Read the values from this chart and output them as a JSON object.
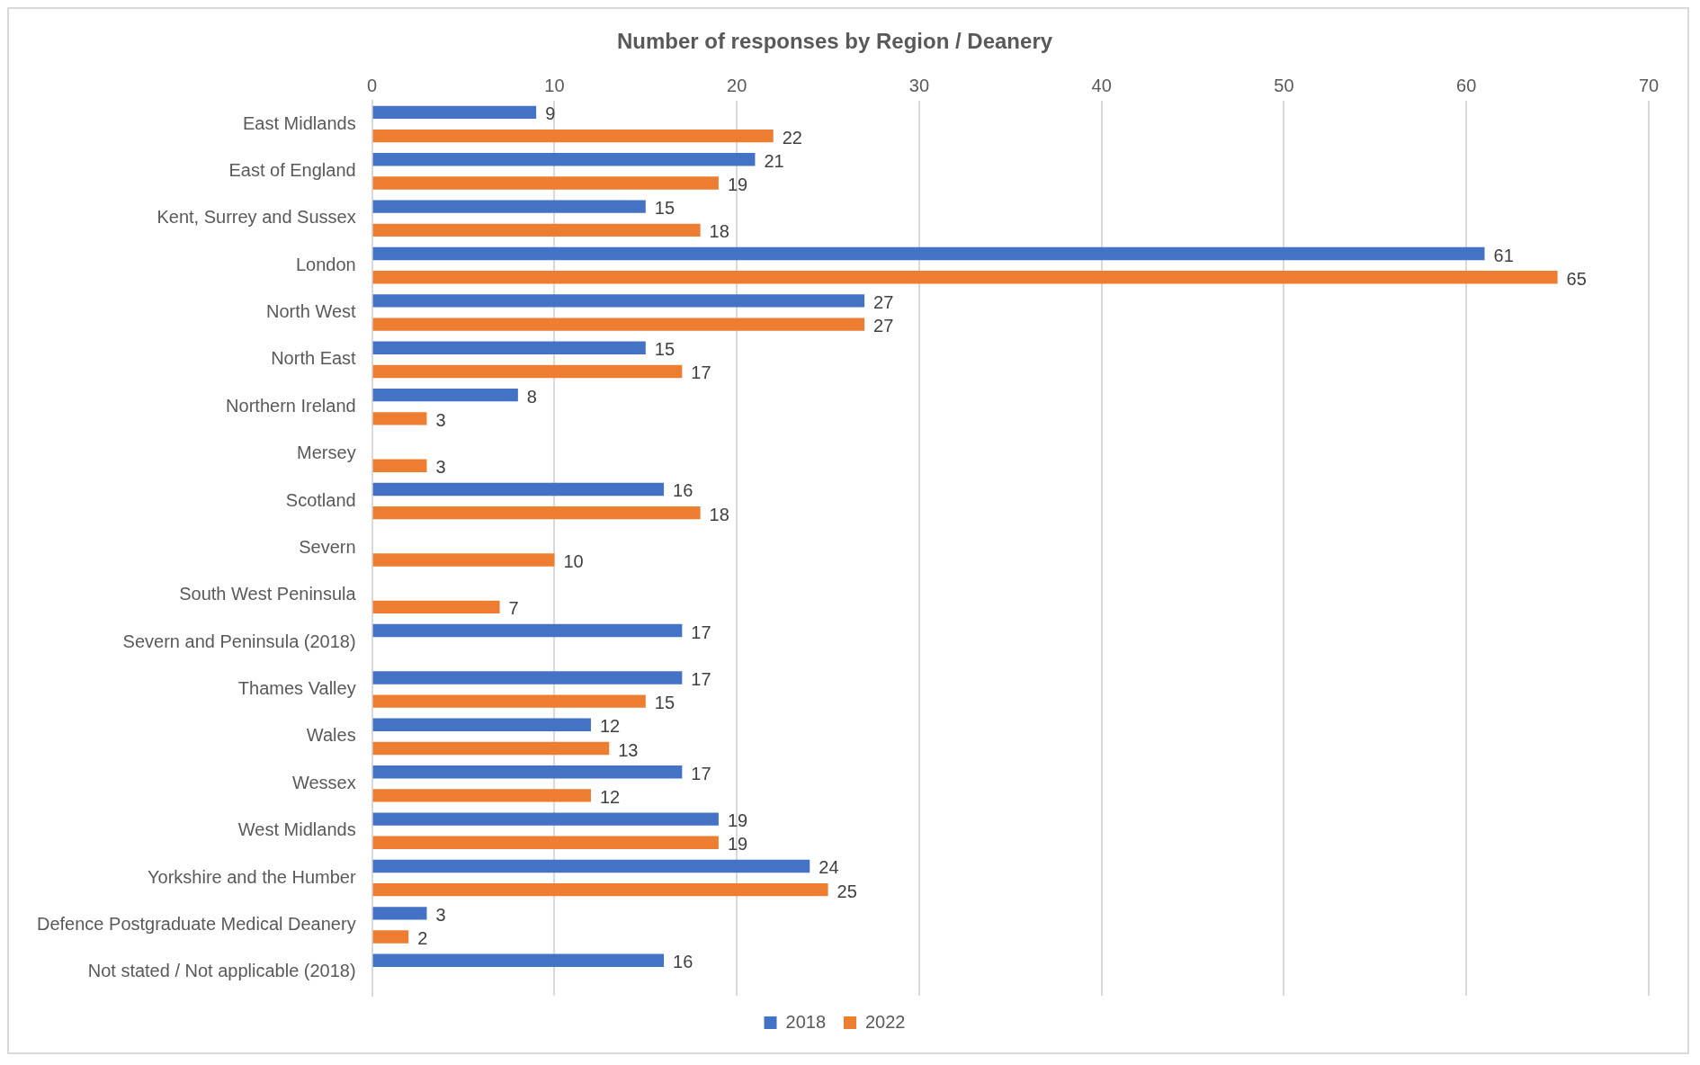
{
  "chart_data": {
    "type": "bar",
    "orientation": "horizontal",
    "title": "Number of responses by Region / Deanery",
    "categories": [
      "East Midlands",
      "East of England",
      "Kent, Surrey and Sussex",
      "London",
      "North West",
      "North East",
      "Northern Ireland",
      "Mersey",
      "Scotland",
      "Severn",
      "South West Peninsula",
      "Severn and Peninsula (2018)",
      "Thames Valley",
      "Wales",
      "Wessex",
      "West Midlands",
      "Yorkshire and the Humber",
      "Defence Postgraduate Medical Deanery",
      "Not stated / Not applicable (2018)"
    ],
    "series": [
      {
        "name": "2018",
        "color": "#4472c4",
        "values": [
          9,
          21,
          15,
          61,
          27,
          15,
          8,
          null,
          16,
          null,
          null,
          17,
          17,
          12,
          17,
          19,
          24,
          3,
          16
        ]
      },
      {
        "name": "2022",
        "color": "#ed7d31",
        "values": [
          22,
          19,
          18,
          65,
          27,
          17,
          3,
          3,
          18,
          10,
          7,
          null,
          15,
          13,
          12,
          19,
          25,
          2,
          null
        ]
      }
    ],
    "xlim": [
      0,
      70
    ],
    "xticks": [
      0,
      10,
      20,
      30,
      40,
      50,
      60,
      70
    ],
    "grid": "x",
    "legend": "bottom",
    "data_labels": true
  }
}
